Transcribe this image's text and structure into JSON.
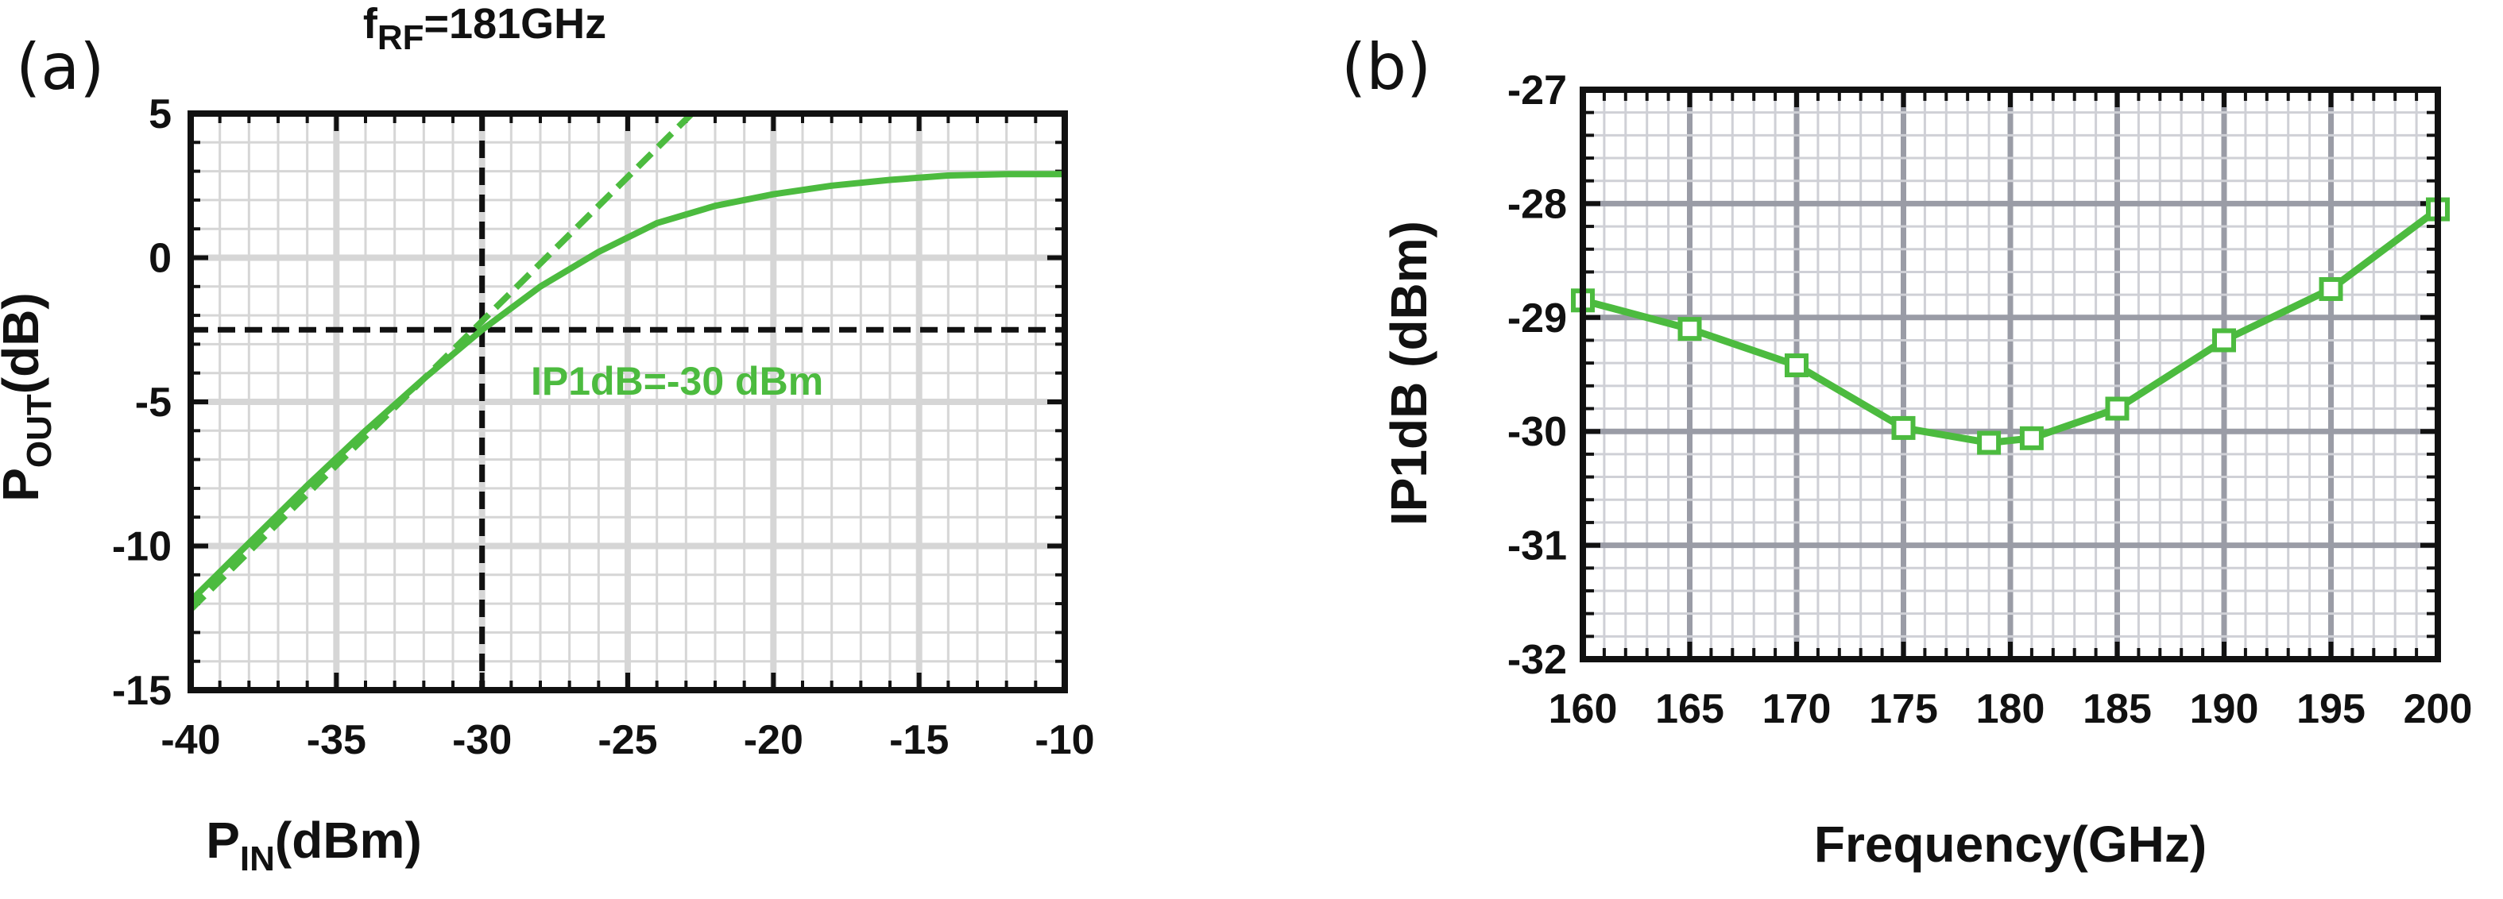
{
  "chart_data": [
    {
      "panel_label": "(a)",
      "type": "line",
      "title": {
        "main": "f",
        "sub": "RF",
        "rest": "=181GHz"
      },
      "xlabel": {
        "main": "P",
        "sub": "IN",
        "rest": "(dBm)"
      },
      "ylabel": {
        "main": "P",
        "sub": "OUT",
        "rest": "(dB)"
      },
      "xlim": [
        -40,
        -10
      ],
      "ylim": [
        -15,
        5
      ],
      "x_ticks": [
        -40,
        -35,
        -30,
        -25,
        -20,
        -15,
        -10
      ],
      "y_ticks": [
        -15,
        -10,
        -5,
        0,
        5
      ],
      "grid": true,
      "series": [
        {
          "style": "solid",
          "color": "#4cbb3f",
          "x": [
            -40,
            -38,
            -36,
            -34,
            -32,
            -30,
            -28,
            -26,
            -25,
            -24,
            -22,
            -20,
            -18,
            -16,
            -14,
            -12,
            -10
          ],
          "y": [
            -11.9,
            -9.9,
            -7.9,
            -6.0,
            -4.2,
            -2.5,
            -1.0,
            0.2,
            0.7,
            1.2,
            1.8,
            2.2,
            2.5,
            2.7,
            2.85,
            2.9,
            2.9
          ]
        },
        {
          "style": "dashed",
          "color": "#4cbb3f",
          "x": [
            -40,
            -22.8
          ],
          "y": [
            -12.2,
            5.0
          ]
        }
      ],
      "reference_lines": {
        "x": -30,
        "y": -2.5,
        "color": "#111111"
      },
      "annotation": "IP1dB=-30 dBm"
    },
    {
      "panel_label": "(b)",
      "type": "line",
      "xlabel": "Frequency(GHz)",
      "ylabel": "IP1dB (dBm)",
      "xlim": [
        160,
        200
      ],
      "ylim": [
        -32,
        -27
      ],
      "x_ticks": [
        160,
        165,
        170,
        175,
        180,
        185,
        190,
        195,
        200
      ],
      "y_ticks": [
        -32,
        -31,
        -30,
        -29,
        -28,
        -27
      ],
      "grid": true,
      "marker": "square",
      "series": [
        {
          "color": "#4cbb3f",
          "x": [
            160,
            165,
            170,
            175,
            179,
            181,
            185,
            190,
            195,
            200
          ],
          "y": [
            -28.85,
            -29.1,
            -29.42,
            -29.97,
            -30.1,
            -30.06,
            -29.8,
            -29.2,
            -28.75,
            -28.05
          ]
        }
      ]
    }
  ]
}
